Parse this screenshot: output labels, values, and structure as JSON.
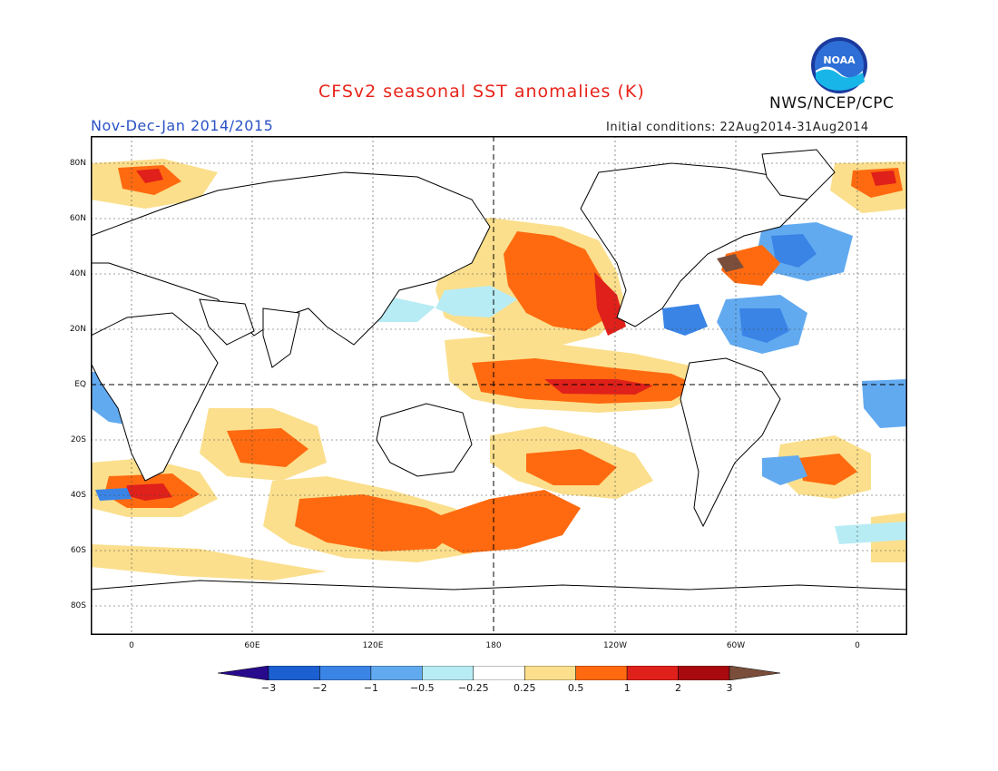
{
  "header": {
    "title": "CFSv2 seasonal SST anomalies (K)",
    "subtitle": "Nov-Dec-Jan 2014/2015",
    "initial_conditions": "Initial conditions: 22Aug2014-31Aug2014",
    "agency": "NWS/NCEP/CPC",
    "logo_text": "NOAA"
  },
  "colors": {
    "title": "#e8231a",
    "subtitle": "#2b52c6",
    "land": "#ffffff",
    "coast": "#000000",
    "ocean_neutral": "#ffffff"
  },
  "map": {
    "lat_labels": [
      "80N",
      "60N",
      "40N",
      "20N",
      "EQ",
      "20S",
      "40S",
      "60S",
      "80S"
    ],
    "lon_labels": [
      "0",
      "60E",
      "120E",
      "180",
      "120W",
      "60W",
      "0"
    ]
  },
  "colorbar": {
    "labels": [
      "−3",
      "−2",
      "−1",
      "−0.5",
      "−0.25",
      "0.25",
      "0.5",
      "1",
      "2",
      "3"
    ],
    "colors": [
      "#280a8c",
      "#1c5fd0",
      "#3a84e6",
      "#62aaf0",
      "#b8ecf4",
      "#ffffff",
      "#fbdf8c",
      "#ff6a10",
      "#e0201a",
      "#a80a10",
      "#7a4e3a"
    ]
  }
}
